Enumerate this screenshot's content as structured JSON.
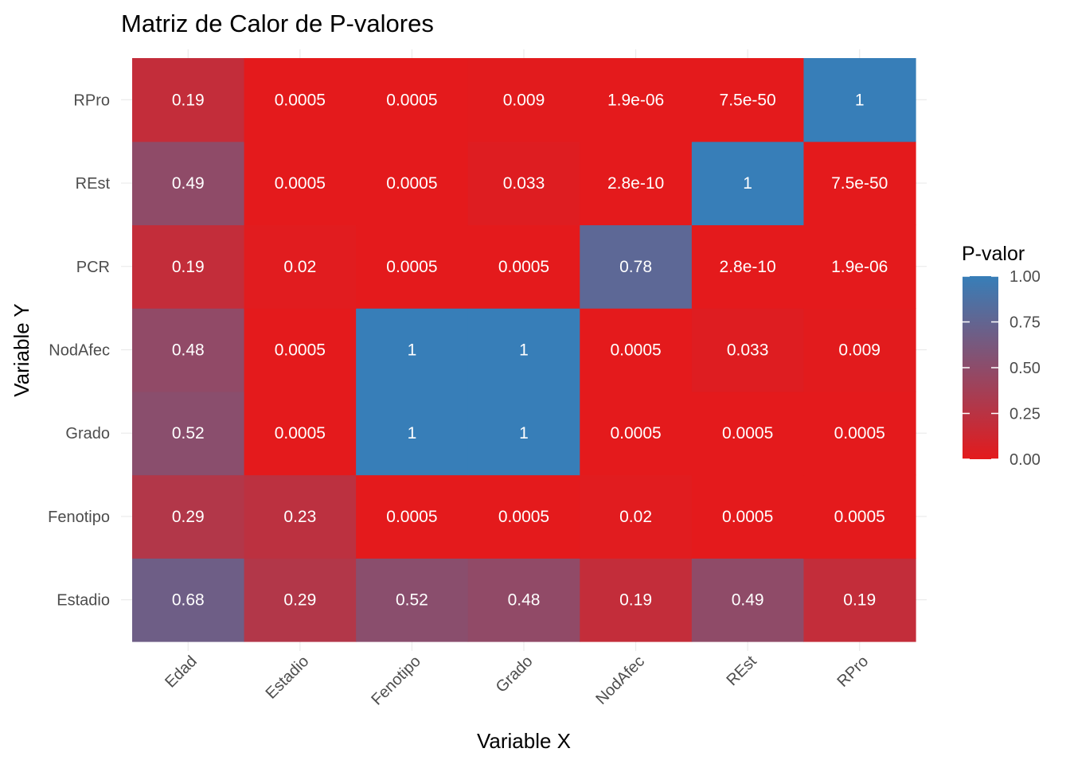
{
  "chart_data": {
    "type": "heatmap",
    "title": "Matriz de Calor de P-valores",
    "xlabel": "Variable X",
    "ylabel": "Variable Y",
    "x_categories": [
      "Edad",
      "Estadio",
      "Fenotipo",
      "Grado",
      "NodAfec",
      "REst",
      "RPro"
    ],
    "y_categories": [
      "Estadio",
      "Fenotipo",
      "Grado",
      "NodAfec",
      "PCR",
      "REst",
      "RPro"
    ],
    "cells": [
      {
        "x": "Edad",
        "y": "Estadio",
        "value": 0.68,
        "label": "0.68"
      },
      {
        "x": "Estadio",
        "y": "Estadio",
        "value": 0.29,
        "label": "0.29"
      },
      {
        "x": "Fenotipo",
        "y": "Estadio",
        "value": 0.52,
        "label": "0.52"
      },
      {
        "x": "Grado",
        "y": "Estadio",
        "value": 0.48,
        "label": "0.48"
      },
      {
        "x": "NodAfec",
        "y": "Estadio",
        "value": 0.19,
        "label": "0.19"
      },
      {
        "x": "REst",
        "y": "Estadio",
        "value": 0.49,
        "label": "0.49"
      },
      {
        "x": "RPro",
        "y": "Estadio",
        "value": 0.19,
        "label": "0.19"
      },
      {
        "x": "Edad",
        "y": "Fenotipo",
        "value": 0.29,
        "label": "0.29"
      },
      {
        "x": "Estadio",
        "y": "Fenotipo",
        "value": 0.23,
        "label": "0.23"
      },
      {
        "x": "Fenotipo",
        "y": "Fenotipo",
        "value": 0.0005,
        "label": "0.0005"
      },
      {
        "x": "Grado",
        "y": "Fenotipo",
        "value": 0.0005,
        "label": "0.0005"
      },
      {
        "x": "NodAfec",
        "y": "Fenotipo",
        "value": 0.02,
        "label": "0.02"
      },
      {
        "x": "REst",
        "y": "Fenotipo",
        "value": 0.0005,
        "label": "0.0005"
      },
      {
        "x": "RPro",
        "y": "Fenotipo",
        "value": 0.0005,
        "label": "0.0005"
      },
      {
        "x": "Edad",
        "y": "Grado",
        "value": 0.52,
        "label": "0.52"
      },
      {
        "x": "Estadio",
        "y": "Grado",
        "value": 0.0005,
        "label": "0.0005"
      },
      {
        "x": "Fenotipo",
        "y": "Grado",
        "value": 1,
        "label": "1"
      },
      {
        "x": "Grado",
        "y": "Grado",
        "value": 1,
        "label": "1"
      },
      {
        "x": "NodAfec",
        "y": "Grado",
        "value": 0.0005,
        "label": "0.0005"
      },
      {
        "x": "REst",
        "y": "Grado",
        "value": 0.0005,
        "label": "0.0005"
      },
      {
        "x": "RPro",
        "y": "Grado",
        "value": 0.0005,
        "label": "0.0005"
      },
      {
        "x": "Edad",
        "y": "NodAfec",
        "value": 0.48,
        "label": "0.48"
      },
      {
        "x": "Estadio",
        "y": "NodAfec",
        "value": 0.0005,
        "label": "0.0005"
      },
      {
        "x": "Fenotipo",
        "y": "NodAfec",
        "value": 1,
        "label": "1"
      },
      {
        "x": "Grado",
        "y": "NodAfec",
        "value": 1,
        "label": "1"
      },
      {
        "x": "NodAfec",
        "y": "NodAfec",
        "value": 0.0005,
        "label": "0.0005"
      },
      {
        "x": "REst",
        "y": "NodAfec",
        "value": 0.033,
        "label": "0.033"
      },
      {
        "x": "RPro",
        "y": "NodAfec",
        "value": 0.009,
        "label": "0.009"
      },
      {
        "x": "Edad",
        "y": "PCR",
        "value": 0.19,
        "label": "0.19"
      },
      {
        "x": "Estadio",
        "y": "PCR",
        "value": 0.02,
        "label": "0.02"
      },
      {
        "x": "Fenotipo",
        "y": "PCR",
        "value": 0.0005,
        "label": "0.0005"
      },
      {
        "x": "Grado",
        "y": "PCR",
        "value": 0.0005,
        "label": "0.0005"
      },
      {
        "x": "NodAfec",
        "y": "PCR",
        "value": 0.78,
        "label": "0.78"
      },
      {
        "x": "REst",
        "y": "PCR",
        "value": 2.8e-10,
        "label": "2.8e-10"
      },
      {
        "x": "RPro",
        "y": "PCR",
        "value": 1.9e-06,
        "label": "1.9e-06"
      },
      {
        "x": "Edad",
        "y": "REst",
        "value": 0.49,
        "label": "0.49"
      },
      {
        "x": "Estadio",
        "y": "REst",
        "value": 0.0005,
        "label": "0.0005"
      },
      {
        "x": "Fenotipo",
        "y": "REst",
        "value": 0.0005,
        "label": "0.0005"
      },
      {
        "x": "Grado",
        "y": "REst",
        "value": 0.033,
        "label": "0.033"
      },
      {
        "x": "NodAfec",
        "y": "REst",
        "value": 2.8e-10,
        "label": "2.8e-10"
      },
      {
        "x": "REst",
        "y": "REst",
        "value": 1,
        "label": "1"
      },
      {
        "x": "RPro",
        "y": "REst",
        "value": 7.5e-50,
        "label": "7.5e-50"
      },
      {
        "x": "Edad",
        "y": "RPro",
        "value": 0.19,
        "label": "0.19"
      },
      {
        "x": "Estadio",
        "y": "RPro",
        "value": 0.0005,
        "label": "0.0005"
      },
      {
        "x": "Fenotipo",
        "y": "RPro",
        "value": 0.0005,
        "label": "0.0005"
      },
      {
        "x": "Grado",
        "y": "RPro",
        "value": 0.009,
        "label": "0.009"
      },
      {
        "x": "NodAfec",
        "y": "RPro",
        "value": 1.9e-06,
        "label": "1.9e-06"
      },
      {
        "x": "REst",
        "y": "RPro",
        "value": 7.5e-50,
        "label": "7.5e-50"
      },
      {
        "x": "RPro",
        "y": "RPro",
        "value": 1,
        "label": "1"
      }
    ],
    "color_scale": {
      "low": "#E41A1C",
      "high": "#377EB8",
      "domain": [
        0,
        1
      ]
    },
    "legend": {
      "title": "P-valor",
      "placement": "right",
      "ticks": [
        "0.00",
        "0.25",
        "0.50",
        "0.75",
        "1.00"
      ]
    },
    "grid": true
  }
}
